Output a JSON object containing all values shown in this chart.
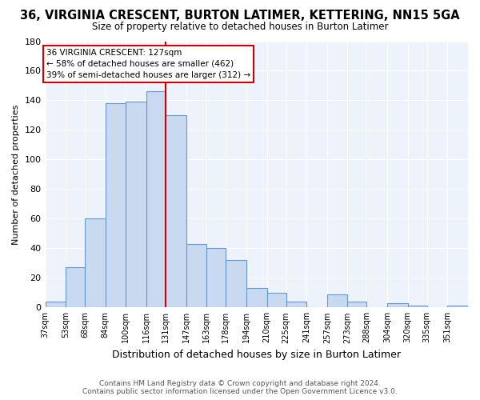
{
  "title": "36, VIRGINIA CRESCENT, BURTON LATIMER, KETTERING, NN15 5GA",
  "subtitle": "Size of property relative to detached houses in Burton Latimer",
  "xlabel": "Distribution of detached houses by size in Burton Latimer",
  "ylabel": "Number of detached properties",
  "bin_labels": [
    "37sqm",
    "53sqm",
    "68sqm",
    "84sqm",
    "100sqm",
    "116sqm",
    "131sqm",
    "147sqm",
    "163sqm",
    "178sqm",
    "194sqm",
    "210sqm",
    "225sqm",
    "241sqm",
    "257sqm",
    "273sqm",
    "288sqm",
    "304sqm",
    "320sqm",
    "335sqm",
    "351sqm"
  ],
  "bar_heights": [
    4,
    27,
    60,
    138,
    139,
    146,
    130,
    43,
    40,
    32,
    13,
    10,
    4,
    0,
    9,
    4,
    0,
    3,
    1,
    0,
    1
  ],
  "bar_color": "#c9d9f0",
  "bar_edge_color": "#6699cc",
  "vline_color": "#cc0000",
  "ylim": [
    0,
    180
  ],
  "yticks": [
    0,
    20,
    40,
    60,
    80,
    100,
    120,
    140,
    160,
    180
  ],
  "annotation_title": "36 VIRGINIA CRESCENT: 127sqm",
  "annotation_line1": "← 58% of detached houses are smaller (462)",
  "annotation_line2": "39% of semi-detached houses are larger (312) →",
  "annotation_box_color": "#ffffff",
  "annotation_box_edge": "#cc0000",
  "footer1": "Contains HM Land Registry data © Crown copyright and database right 2024.",
  "footer2": "Contains public sector information licensed under the Open Government Licence v3.0.",
  "bg_color": "#eef2fb",
  "title_fontsize": 10.5,
  "subtitle_fontsize": 8.5,
  "bin_edges": [
    37,
    53,
    68,
    84,
    100,
    116,
    131,
    147,
    163,
    178,
    194,
    210,
    225,
    241,
    257,
    273,
    288,
    304,
    320,
    335,
    351,
    367
  ]
}
